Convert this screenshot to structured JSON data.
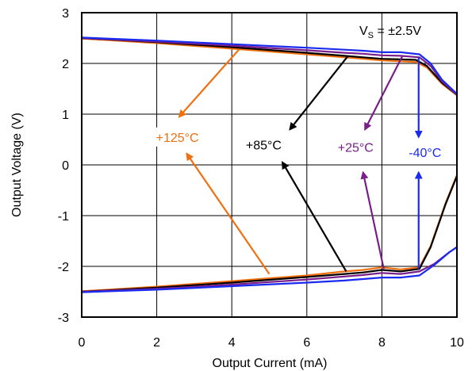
{
  "chart_data": {
    "type": "line",
    "title": "",
    "xlabel": "Output Current (mA)",
    "ylabel": "Output Voltage (V)",
    "xlim": [
      0,
      10
    ],
    "ylim": [
      -3,
      3
    ],
    "xticks": [
      0,
      2,
      4,
      6,
      8,
      10
    ],
    "yticks": [
      -3,
      -2,
      -1,
      0,
      1,
      2,
      3
    ],
    "grid": true,
    "legend": "none",
    "supply_label": {
      "main": "V",
      "sub": "S",
      "rest": " = ±2.5V"
    },
    "series": [
      {
        "name": "+125°C",
        "color": "#f07010",
        "upper": {
          "x": [
            0,
            2,
            4,
            6,
            7,
            7.5,
            8,
            8.5,
            8.9,
            9.2,
            9.6,
            10
          ],
          "y": [
            2.49,
            2.4,
            2.29,
            2.18,
            2.12,
            2.09,
            2.06,
            2.04,
            2.03,
            1.92,
            1.6,
            1.37
          ]
        },
        "lower": {
          "x": [
            0,
            2,
            4,
            6,
            7,
            7.5,
            8,
            8.5,
            9,
            9.3,
            9.7,
            10
          ],
          "y": [
            -2.49,
            -2.4,
            -2.29,
            -2.18,
            -2.1,
            -2.07,
            -2.02,
            -2.06,
            -2.02,
            -1.6,
            -0.75,
            -0.2
          ]
        }
      },
      {
        "name": "+85°C",
        "color": "#000000",
        "upper": {
          "x": [
            0,
            2,
            4,
            6,
            7,
            7.5,
            8,
            8.5,
            8.9,
            9.2,
            9.6,
            10
          ],
          "y": [
            2.5,
            2.42,
            2.32,
            2.21,
            2.15,
            2.12,
            2.09,
            2.08,
            2.07,
            1.95,
            1.62,
            1.38
          ]
        },
        "lower": {
          "x": [
            0,
            2,
            4,
            6,
            7,
            7.5,
            8,
            8.5,
            9,
            9.3,
            9.7,
            10
          ],
          "y": [
            -2.5,
            -2.42,
            -2.32,
            -2.21,
            -2.15,
            -2.12,
            -2.07,
            -2.1,
            -2.05,
            -1.62,
            -0.77,
            -0.22
          ]
        }
      },
      {
        "name": "+25°C",
        "color": "#7a1e8a",
        "upper": {
          "x": [
            0,
            2,
            4,
            6,
            7,
            7.5,
            8,
            8.5,
            9,
            9.3,
            9.6,
            10
          ],
          "y": [
            2.5,
            2.43,
            2.35,
            2.26,
            2.21,
            2.19,
            2.16,
            2.15,
            2.12,
            1.95,
            1.65,
            1.38
          ]
        },
        "lower": {
          "x": [
            0,
            2,
            4,
            6,
            7,
            7.5,
            8,
            8.5,
            9,
            9.4,
            9.8,
            10
          ],
          "y": [
            -2.5,
            -2.44,
            -2.36,
            -2.26,
            -2.2,
            -2.17,
            -2.13,
            -2.15,
            -2.1,
            -1.95,
            -1.72,
            -1.62
          ]
        }
      },
      {
        "name": "-40°C",
        "color": "#1a2bf0",
        "upper": {
          "x": [
            0,
            2,
            4,
            6,
            7,
            7.5,
            8,
            8.5,
            9,
            9.3,
            9.6,
            10
          ],
          "y": [
            2.51,
            2.45,
            2.38,
            2.31,
            2.27,
            2.25,
            2.22,
            2.22,
            2.18,
            2.0,
            1.68,
            1.4
          ]
        },
        "lower": {
          "x": [
            0,
            2,
            4,
            6,
            7,
            7.5,
            8,
            8.5,
            9,
            9.4,
            9.8,
            10
          ],
          "y": [
            -2.51,
            -2.46,
            -2.39,
            -2.32,
            -2.28,
            -2.25,
            -2.22,
            -2.22,
            -2.18,
            -1.97,
            -1.72,
            -1.62
          ]
        }
      }
    ],
    "annotations": [
      {
        "text": "+125°C",
        "color": "#f07010",
        "x": 2.55,
        "y": 0.55
      },
      {
        "text": "+85°C",
        "color": "#000000",
        "x": 4.85,
        "y": 0.4
      },
      {
        "text": "+25°C",
        "color": "#7a1e8a",
        "x": 7.3,
        "y": 0.35
      },
      {
        "text": "-40°C",
        "color": "#1a2bf0",
        "x": 9.15,
        "y": 0.25
      }
    ],
    "arrows": [
      {
        "color": "#f07010",
        "from": [
          4.2,
          2.28
        ],
        "to": [
          2.6,
          0.95
        ]
      },
      {
        "color": "#f07010",
        "from": [
          5.0,
          -2.15
        ],
        "to": [
          2.8,
          0.22
        ]
      },
      {
        "color": "#000000",
        "from": [
          7.1,
          2.15
        ],
        "to": [
          5.55,
          0.7
        ]
      },
      {
        "color": "#000000",
        "from": [
          7.05,
          -2.1
        ],
        "to": [
          5.35,
          0.05
        ]
      },
      {
        "color": "#7a1e8a",
        "from": [
          8.55,
          2.15
        ],
        "to": [
          7.55,
          0.7
        ]
      },
      {
        "color": "#7a1e8a",
        "from": [
          8.05,
          -2.05
        ],
        "to": [
          7.5,
          -0.15
        ]
      },
      {
        "color": "#1a2bf0",
        "from": [
          8.98,
          2.12
        ],
        "to": [
          8.98,
          0.55
        ]
      },
      {
        "color": "#1a2bf0",
        "from": [
          8.98,
          -2.05
        ],
        "to": [
          8.98,
          -0.15
        ]
      }
    ]
  }
}
